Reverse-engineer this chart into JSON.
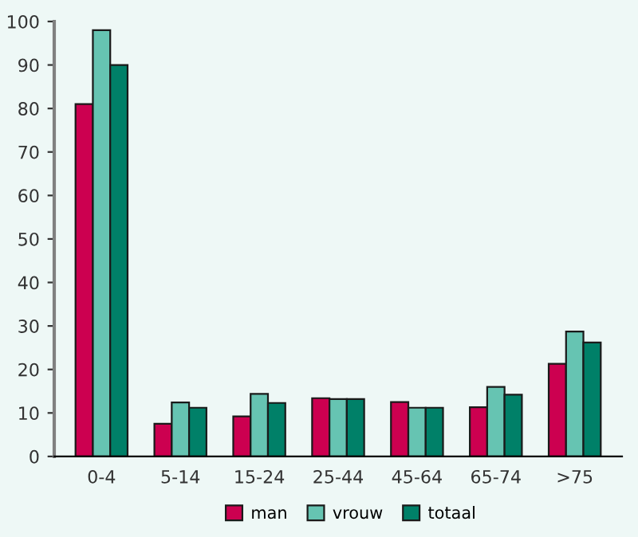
{
  "chart_data": {
    "type": "bar",
    "categories": [
      "0-4",
      "5-14",
      "15-24",
      "25-44",
      "45-64",
      "65-74",
      ">75"
    ],
    "series": [
      {
        "name": "man",
        "color": "#cc0050",
        "values": [
          81,
          7.5,
          9.2,
          13.4,
          12.5,
          11.3,
          21.3
        ]
      },
      {
        "name": "vrouw",
        "color": "#66c4b2",
        "values": [
          98,
          12.4,
          14.4,
          13.2,
          11.2,
          16,
          28.7
        ]
      },
      {
        "name": "totaal",
        "color": "#008068",
        "values": [
          90,
          11.2,
          12.3,
          13.2,
          11.2,
          14.2,
          26.2
        ]
      }
    ],
    "ylim": [
      0,
      100
    ],
    "yticks": [
      0,
      10,
      20,
      30,
      40,
      50,
      60,
      70,
      80,
      90,
      100
    ],
    "grid": false,
    "legend": "bottom"
  }
}
